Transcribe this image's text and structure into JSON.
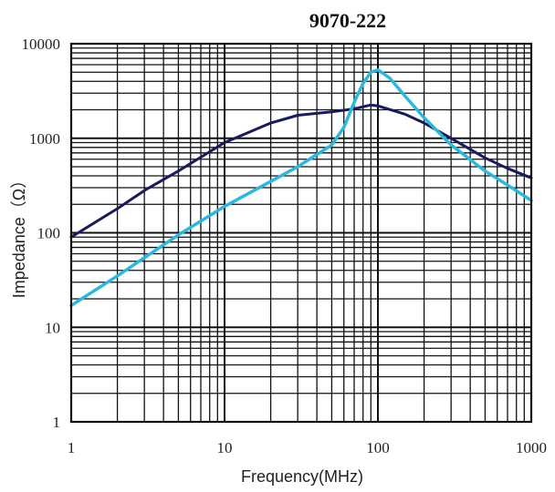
{
  "chart_data": {
    "type": "line",
    "title": "9070-222",
    "xlabel": "Frequency(MHz)",
    "ylabel": "Impedance（Ω）",
    "x_scale": "log",
    "y_scale": "log",
    "xlim": [
      1,
      1000
    ],
    "ylim": [
      1,
      10000
    ],
    "x_ticks": [
      1,
      10,
      100,
      1000
    ],
    "x_tick_labels": [
      "1",
      "10",
      "100",
      "1000"
    ],
    "y_ticks": [
      1,
      10,
      100,
      1000,
      10000
    ],
    "y_tick_labels": [
      "1",
      "10",
      "100",
      "1000",
      "10000"
    ],
    "grid": true,
    "legend": "none",
    "series": [
      {
        "color": "#1a1a5e",
        "x": [
          1,
          2,
          3,
          5,
          10,
          20,
          30,
          50,
          70,
          90,
          100,
          150,
          200,
          300,
          500,
          700,
          1000
        ],
        "y": [
          90,
          180,
          280,
          450,
          900,
          1450,
          1750,
          1900,
          2050,
          2250,
          2200,
          1800,
          1450,
          1000,
          620,
          480,
          380
        ]
      },
      {
        "color": "#2bb8e0",
        "x": [
          1,
          2,
          5,
          10,
          20,
          30,
          50,
          60,
          70,
          80,
          90,
          100,
          120,
          150,
          200,
          300,
          500,
          700,
          1000
        ],
        "y": [
          17,
          35,
          95,
          190,
          350,
          500,
          850,
          1300,
          2400,
          3800,
          5000,
          5300,
          4300,
          2800,
          1650,
          850,
          450,
          320,
          220
        ]
      }
    ]
  }
}
